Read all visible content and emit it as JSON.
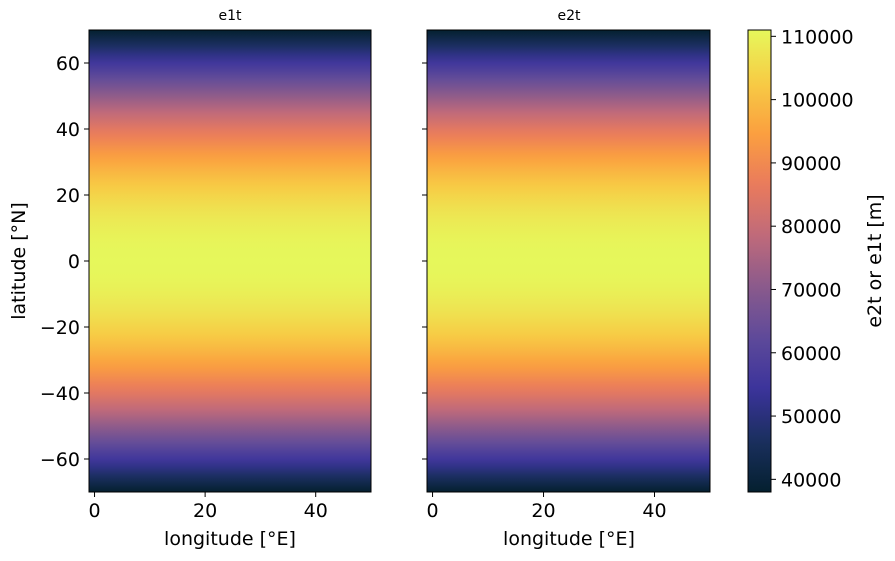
{
  "chart_data": [
    {
      "type": "heatmap",
      "title": "e1t",
      "xlabel": "longitude [°E]",
      "ylabel": "latitude [°N]",
      "xlim": [
        -1,
        50
      ],
      "ylim": [
        -70,
        70
      ],
      "xticks": [
        0,
        20,
        40
      ],
      "yticks": [
        -60,
        -40,
        -20,
        0,
        20,
        40,
        60
      ],
      "ytick_labels": [
        "−60",
        "−40",
        "−20",
        "0",
        "20",
        "40",
        "60"
      ],
      "field": "cell size varies with latitude only, max ~111000 m at equator, ~38000 m at ±70"
    },
    {
      "type": "heatmap",
      "title": "e2t",
      "xlabel": "longitude [°E]",
      "ylabel": "",
      "xlim": [
        -1,
        50
      ],
      "ylim": [
        -70,
        70
      ],
      "xticks": [
        0,
        20,
        40
      ],
      "yticks": [
        -60,
        -40,
        -20,
        0,
        20,
        40,
        60
      ],
      "field": "cell size varies with latitude only, max ~111000 m at equator, ~38000 m at ±70"
    }
  ],
  "colorbar": {
    "label": "e2t or e1t [m]",
    "range": [
      38000,
      111000
    ],
    "ticks": [
      40000,
      50000,
      60000,
      70000,
      80000,
      90000,
      100000,
      110000
    ],
    "colormap": "thermal",
    "colors": [
      "#04202f",
      "#1a2f5e",
      "#3b339b",
      "#5e4a9a",
      "#8a5a8c",
      "#c06a7a",
      "#ea7b5c",
      "#fba03f",
      "#f7cd45",
      "#e6f75b"
    ]
  }
}
